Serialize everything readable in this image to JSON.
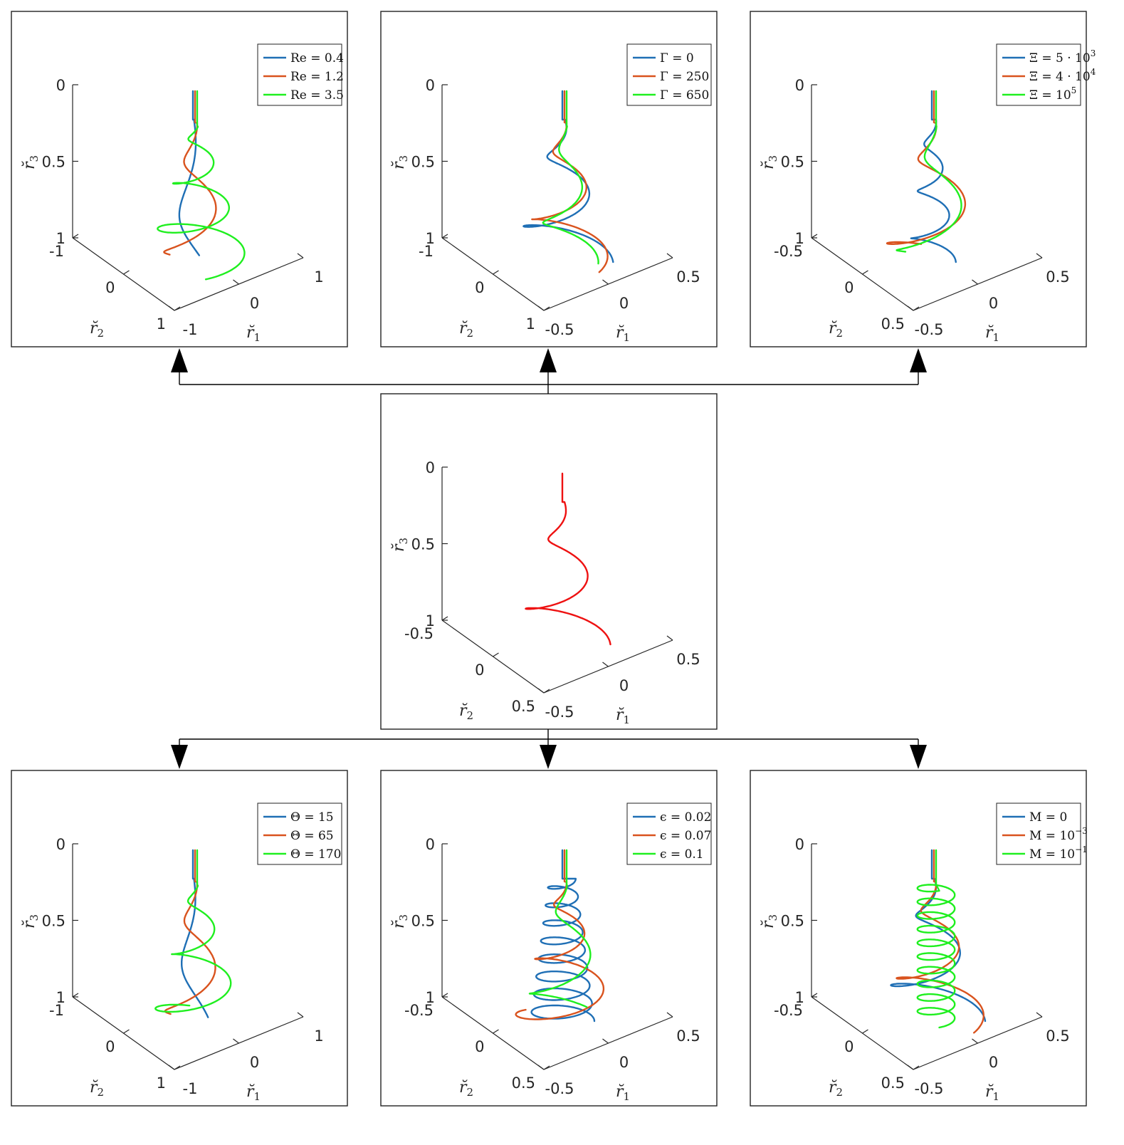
{
  "colors": {
    "blue": "#1f6fb5",
    "orange": "#d9531e",
    "green": "#1fef1f",
    "red": "#ee1111"
  },
  "chart_data": [
    {
      "type": "line",
      "id": "top-left",
      "xlabel": "r̆₁",
      "ylabel": "r̆₂",
      "zlabel": "r̆₃",
      "x_ticks": [
        "-1",
        "0",
        "1"
      ],
      "y_ticks": [
        "-1",
        "0",
        "1"
      ],
      "z_ticks": [
        "0",
        "0.5",
        "1"
      ],
      "legend_position": "top-right",
      "series": [
        {
          "name": "Re = 0.4",
          "label_main": "Re = 0.4",
          "color_key": "blue",
          "turns": 0.8,
          "r_top": 0.02,
          "r_bottom": 0.38
        },
        {
          "name": "Re = 1.2",
          "label_main": "Re = 1.2",
          "color_key": "orange",
          "turns": 1.5,
          "r_top": 0.05,
          "r_bottom": 0.62
        },
        {
          "name": "Re = 3.5",
          "label_main": "Re = 3.5",
          "color_key": "green",
          "turns": 3.0,
          "r_top": 0.08,
          "r_bottom": 0.95
        }
      ]
    },
    {
      "type": "line",
      "id": "top-middle",
      "xlabel": "r̆₁",
      "ylabel": "r̆₂",
      "zlabel": "r̆₃",
      "x_ticks": [
        "-0.5",
        "0",
        "0.5"
      ],
      "y_ticks": [
        "-1",
        "0",
        "1"
      ],
      "z_ticks": [
        "0",
        "0.5",
        "1"
      ],
      "legend_position": "top-right",
      "series": [
        {
          "name": "Γ = 0",
          "label_main": "Γ = 0",
          "color_key": "blue",
          "turns": 2.0,
          "r_top": 0.05,
          "r_bottom": 0.95
        },
        {
          "name": "Γ = 250",
          "label_main": "Γ = 250",
          "color_key": "orange",
          "turns": 2.0,
          "r_top": 0.05,
          "r_bottom": 0.85
        },
        {
          "name": "Γ = 650",
          "label_main": "Γ = 650",
          "color_key": "green",
          "turns": 1.8,
          "r_top": 0.05,
          "r_bottom": 0.6
        }
      ]
    },
    {
      "type": "line",
      "id": "top-right",
      "xlabel": "r̆₁",
      "ylabel": "r̆₂",
      "zlabel": "r̆₃",
      "x_ticks": [
        "-0.5",
        "0",
        "0.5"
      ],
      "y_ticks": [
        "-0.5",
        "0",
        "0.5"
      ],
      "z_ticks": [
        "0",
        "0.5",
        "1"
      ],
      "legend_position": "top-right",
      "series": [
        {
          "name": "Ξ = 5 · 10³",
          "label_main": "Ξ = 5 · 10",
          "label_sup": "3",
          "color_key": "blue",
          "turns": 3.0,
          "r_top": 0.08,
          "r_bottom": 0.45
        },
        {
          "name": "Ξ = 4 · 10⁴",
          "label_main": "Ξ = 4 · 10",
          "label_sup": "4",
          "color_key": "orange",
          "turns": 1.6,
          "r_top": 0.05,
          "r_bottom": 1.0
        },
        {
          "name": "Ξ = 10⁵",
          "label_main": "Ξ = 10",
          "label_sup": "5",
          "color_key": "green",
          "turns": 1.4,
          "r_top": 0.05,
          "r_bottom": 0.8
        }
      ]
    },
    {
      "type": "line",
      "id": "center",
      "xlabel": "r̆₁",
      "ylabel": "r̆₂",
      "zlabel": "r̆₃",
      "x_ticks": [
        "-0.5",
        "0",
        "0.5"
      ],
      "y_ticks": [
        "-0.5",
        "0",
        "0.5"
      ],
      "z_ticks": [
        "0",
        "0.5",
        "1"
      ],
      "series": [
        {
          "color_key": "red",
          "turns": 2.0,
          "r_top": 0.04,
          "r_bottom": 0.9
        }
      ]
    },
    {
      "type": "line",
      "id": "bottom-left",
      "xlabel": "r̆₁",
      "ylabel": "r̆₂",
      "zlabel": "r̆₃",
      "x_ticks": [
        "-1",
        "0",
        "1"
      ],
      "y_ticks": [
        "-1",
        "0",
        "1"
      ],
      "z_ticks": [
        "0",
        "0.5",
        "1"
      ],
      "legend_position": "top-right",
      "series": [
        {
          "name": "Θ = 15",
          "label_main": "Θ = 15",
          "color_key": "blue",
          "turns": 0.9,
          "r_top": 0.02,
          "r_bottom": 0.35
        },
        {
          "name": "Θ = 65",
          "label_main": "Θ = 65",
          "color_key": "orange",
          "turns": 1.5,
          "r_top": 0.05,
          "r_bottom": 0.6
        },
        {
          "name": "Θ = 170",
          "label_main": "Θ = 170",
          "color_key": "green",
          "turns": 2.5,
          "r_top": 0.08,
          "r_bottom": 0.85
        }
      ]
    },
    {
      "type": "line",
      "id": "bottom-middle",
      "xlabel": "r̆₁",
      "ylabel": "r̆₂",
      "zlabel": "r̆₃",
      "x_ticks": [
        "-0.5",
        "0",
        "0.5"
      ],
      "y_ticks": [
        "-0.5",
        "0",
        "0.5"
      ],
      "z_ticks": [
        "0",
        "0.5",
        "1"
      ],
      "legend_position": "top-right",
      "series": [
        {
          "name": "ϵ = 0.02",
          "label_main": "ϵ = 0.02",
          "color_key": "blue",
          "turns": 8.0,
          "r_top": 0.25,
          "r_bottom": 0.6
        },
        {
          "name": "ϵ = 0.07",
          "label_main": "ϵ = 0.07",
          "color_key": "orange",
          "turns": 2.5,
          "r_top": 0.05,
          "r_bottom": 0.95
        },
        {
          "name": "ϵ = 0.1",
          "label_main": "ϵ = 0.1",
          "color_key": "green",
          "turns": 1.6,
          "r_top": 0.05,
          "r_bottom": 0.85
        }
      ]
    },
    {
      "type": "line",
      "id": "bottom-right",
      "xlabel": "r̆₁",
      "ylabel": "r̆₂",
      "zlabel": "r̆₃",
      "x_ticks": [
        "-0.5",
        "0",
        "0.5"
      ],
      "y_ticks": [
        "-0.5",
        "0",
        "0.5"
      ],
      "z_ticks": [
        "0",
        "0.5",
        "1"
      ],
      "legend_position": "top-right",
      "series": [
        {
          "name": "M = 0",
          "label_main": "M = 0",
          "color_key": "blue",
          "turns": 2.0,
          "r_top": 0.05,
          "r_bottom": 1.0
        },
        {
          "name": "M = 10⁻³",
          "label_main": "M = 10",
          "label_sup": "−3",
          "color_key": "orange",
          "turns": 2.0,
          "r_top": 0.05,
          "r_bottom": 0.98
        },
        {
          "name": "M = 10⁻¹",
          "label_main": "M = 10",
          "label_sup": "−1",
          "color_key": "green",
          "turns": 10.0,
          "r_top": 0.35,
          "r_bottom": 0.35
        }
      ]
    }
  ]
}
